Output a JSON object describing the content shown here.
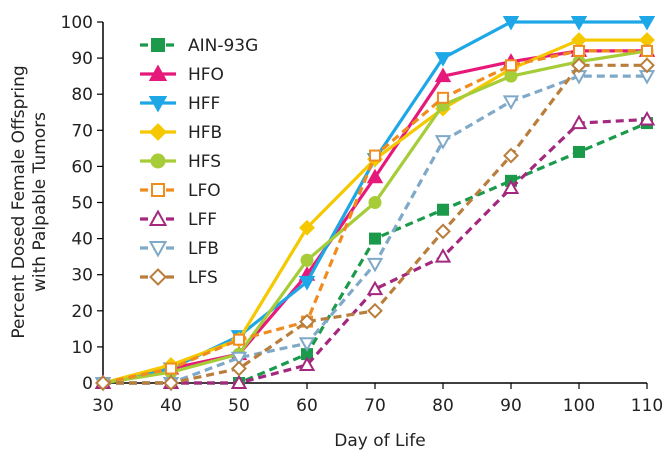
{
  "chart_data": {
    "type": "line",
    "title": "",
    "xlabel": "Day of Life",
    "ylabel_lines": [
      "Percent Dosed Female Offspring",
      "with Palpable Tumors"
    ],
    "xlim": [
      30,
      110
    ],
    "ylim": [
      0,
      100
    ],
    "x": [
      30,
      40,
      50,
      60,
      70,
      80,
      90,
      100,
      110
    ],
    "x_ticks": [
      30,
      40,
      50,
      60,
      70,
      80,
      90,
      100,
      110
    ],
    "y_ticks": [
      0,
      10,
      20,
      30,
      40,
      50,
      60,
      70,
      80,
      90,
      100
    ],
    "grid": false,
    "legend_position": "top-left",
    "series": [
      {
        "name": "AIN-93G",
        "color": "#1a9a4a",
        "marker": "square",
        "filled": true,
        "dashed": true,
        "values": [
          0,
          0,
          0,
          8,
          40,
          48,
          56,
          64,
          72
        ]
      },
      {
        "name": "HFO",
        "color": "#e6197a",
        "marker": "triangle",
        "filled": true,
        "dashed": false,
        "values": [
          0,
          4,
          8,
          30,
          57,
          85,
          89,
          92,
          92
        ]
      },
      {
        "name": "HFF",
        "color": "#1ea7e6",
        "marker": "triangle-down",
        "filled": true,
        "dashed": false,
        "values": [
          0,
          4,
          13,
          28,
          62,
          90,
          100,
          100,
          100
        ]
      },
      {
        "name": "HFB",
        "color": "#f5c800",
        "marker": "diamond",
        "filled": true,
        "dashed": false,
        "values": [
          0,
          5,
          12,
          43,
          62,
          76,
          87,
          95,
          95
        ]
      },
      {
        "name": "HFS",
        "color": "#a6cc38",
        "marker": "circle",
        "filled": true,
        "dashed": false,
        "values": [
          0,
          3,
          8,
          34,
          50,
          77,
          85,
          89,
          92
        ]
      },
      {
        "name": "LFO",
        "color": "#f08c1e",
        "marker": "square",
        "filled": false,
        "dashed": true,
        "values": [
          0,
          4,
          12,
          17,
          63,
          79,
          88,
          92,
          92
        ]
      },
      {
        "name": "LFF",
        "color": "#a3287e",
        "marker": "triangle",
        "filled": false,
        "dashed": true,
        "values": [
          0,
          0,
          0,
          5,
          26,
          35,
          54,
          72,
          73
        ]
      },
      {
        "name": "LFB",
        "color": "#7fa9c8",
        "marker": "triangle-down",
        "filled": false,
        "dashed": true,
        "values": [
          0,
          0,
          7,
          11,
          33,
          67,
          78,
          85,
          85
        ]
      },
      {
        "name": "LFS",
        "color": "#b97e3c",
        "marker": "diamond",
        "filled": false,
        "dashed": true,
        "values": [
          0,
          0,
          4,
          17,
          20,
          42,
          63,
          88,
          88
        ]
      }
    ]
  }
}
